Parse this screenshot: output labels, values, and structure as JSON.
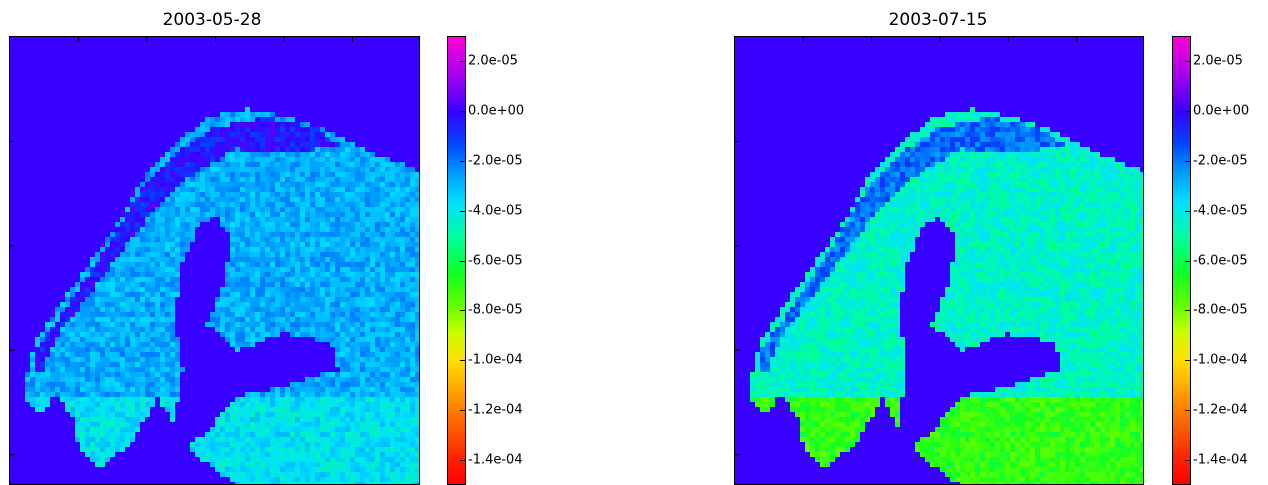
{
  "chart_data": [
    {
      "type": "heatmap",
      "title": "2003-05-28",
      "colorbar": {
        "min": -0.00015,
        "max": 3e-05,
        "ticks": [
          "2.0e-05",
          "0.0e+00",
          "-2.0e-05",
          "-4.0e-05",
          "-6.0e-05",
          "-8.0e-05",
          "-1.0e-04",
          "-1.2e-04",
          "-1.4e-04"
        ],
        "tick_values": [
          2e-05,
          0.0,
          -2e-05,
          -4e-05,
          -6e-05,
          -8e-05,
          -0.0001,
          -0.00012,
          -0.00014
        ],
        "colormap": "gist_rainbow"
      },
      "background_value": 0.0,
      "regions": {
        "mountains": -4e-06,
        "land": -2.8e-05,
        "south": -3.8e-05
      }
    },
    {
      "type": "heatmap",
      "title": "2003-07-15",
      "colorbar": {
        "min": -0.00015,
        "max": 3e-05,
        "ticks": [
          "2.0e-05",
          "0.0e+00",
          "-2.0e-05",
          "-4.0e-05",
          "-6.0e-05",
          "-8.0e-05",
          "-1.0e-04",
          "-1.2e-04",
          "-1.4e-04"
        ],
        "tick_values": [
          2e-05,
          0.0,
          -2e-05,
          -4e-05,
          -6e-05,
          -8e-05,
          -0.0001,
          -0.00012,
          -0.00014
        ],
        "colormap": "gist_rainbow"
      },
      "background_value": 0.0,
      "regions": {
        "mountains": -1.8e-05,
        "land": -4.5e-05,
        "south": -7e-05
      }
    }
  ],
  "colors": {
    "background_sea": "#4a14f2"
  }
}
